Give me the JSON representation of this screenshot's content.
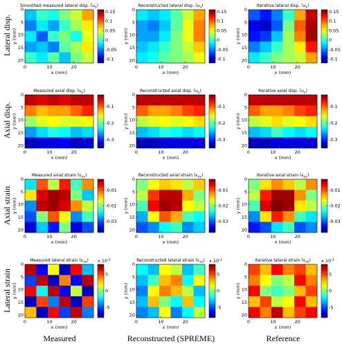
{
  "row_labels": [
    "Lateral disp.",
    "Axial disp.",
    "Axial strain",
    "Lateral strain"
  ],
  "column_labels": [
    "Measured",
    "Reconstructed (SPREME)",
    "Reference"
  ],
  "chart_data": [
    {
      "type": "heatmap",
      "title": "Smoothed measured lateral disp.",
      "symbol": "u",
      "subscript": "x",
      "xlabel": "x (mm)",
      "ylabel": "y (mm)",
      "xlim": [
        0,
        28
      ],
      "xticks": [
        0,
        10,
        20
      ],
      "ylim": [
        0,
        21
      ],
      "yticks": [
        0,
        5,
        10,
        15,
        20
      ],
      "clim": [
        -0.12,
        0.16
      ],
      "cticks": [
        0.15,
        0.1,
        0.05,
        0,
        -0.05,
        -0.1
      ],
      "z": [
        [
          -0.03,
          0.0,
          -0.01,
          0.02,
          0.04,
          0.08
        ],
        [
          -0.05,
          -0.02,
          -0.04,
          0.0,
          0.03,
          0.06
        ],
        [
          -0.02,
          -0.06,
          0.0,
          0.02,
          -0.01,
          0.05
        ],
        [
          -0.04,
          -0.03,
          -0.05,
          0.01,
          0.03,
          0.06
        ],
        [
          0.0,
          -0.02,
          0.01,
          -0.03,
          0.02,
          0.04
        ]
      ]
    },
    {
      "type": "heatmap",
      "title": "Reconstructed lateral disp.",
      "symbol": "u",
      "subscript": "x",
      "xlabel": "x (mm)",
      "ylabel": "y (mm)",
      "xlim": [
        0,
        28
      ],
      "xticks": [
        0,
        10,
        20
      ],
      "ylim": [
        0,
        21
      ],
      "yticks": [
        0,
        5,
        10,
        15,
        20
      ],
      "clim": [
        -0.12,
        0.16
      ],
      "cticks": [
        0.15,
        0.1,
        0.05,
        0,
        -0.05,
        -0.1
      ],
      "z": [
        [
          -0.02,
          -0.03,
          -0.02,
          0.01,
          0.04,
          0.08
        ],
        [
          -0.04,
          -0.05,
          -0.03,
          0.01,
          0.05,
          0.09
        ],
        [
          -0.04,
          -0.04,
          -0.02,
          0.02,
          0.05,
          0.09
        ],
        [
          -0.03,
          -0.02,
          0.0,
          0.02,
          0.04,
          0.07
        ],
        [
          -0.02,
          -0.01,
          0.01,
          0.02,
          0.03,
          0.05
        ]
      ]
    },
    {
      "type": "heatmap",
      "title": "Iterative lateral disp.",
      "symbol": "u",
      "subscript": "x",
      "xlabel": "x (mm)",
      "ylabel": "y (mm)",
      "xlim": [
        0,
        28
      ],
      "xticks": [
        0,
        10,
        20
      ],
      "ylim": [
        0,
        21
      ],
      "yticks": [
        0,
        5,
        10,
        15,
        20
      ],
      "clim": [
        -0.12,
        0.16
      ],
      "cticks": [
        0.15,
        0.1,
        0.05,
        0,
        -0.05,
        -0.1
      ],
      "z": [
        [
          -0.06,
          -0.08,
          -0.05,
          0.0,
          0.08,
          0.14
        ],
        [
          -0.09,
          -0.1,
          -0.06,
          0.02,
          0.1,
          0.15
        ],
        [
          -0.08,
          -0.07,
          -0.03,
          0.03,
          0.09,
          0.15
        ],
        [
          -0.05,
          -0.03,
          0.0,
          0.03,
          0.06,
          0.12
        ],
        [
          -0.02,
          0.0,
          0.02,
          0.03,
          0.04,
          0.08
        ]
      ]
    },
    {
      "type": "heatmap",
      "title": "Measured axial disp.",
      "symbol": "u",
      "subscript": "y",
      "xlabel": "x (mm)",
      "ylabel": "y (mm)",
      "xlim": [
        0,
        28
      ],
      "xticks": [
        0,
        10,
        20
      ],
      "ylim": [
        0,
        21
      ],
      "yticks": [
        0,
        5,
        10,
        15,
        20
      ],
      "clim": [
        -0.35,
        -0.03
      ],
      "cticks": [
        -0.1,
        -0.2,
        -0.3
      ],
      "z": [
        [
          -0.05,
          -0.06,
          -0.05,
          -0.06,
          -0.05,
          -0.05
        ],
        [
          -0.11,
          -0.13,
          -0.12,
          -0.12,
          -0.1,
          -0.08
        ],
        [
          -0.18,
          -0.16,
          -0.15,
          -0.16,
          -0.16,
          -0.15
        ],
        [
          -0.26,
          -0.24,
          -0.22,
          -0.23,
          -0.25,
          -0.24
        ],
        [
          -0.33,
          -0.32,
          -0.32,
          -0.31,
          -0.33,
          -0.32
        ]
      ]
    },
    {
      "type": "heatmap",
      "title": "Reconstructed axial disp.",
      "symbol": "u",
      "subscript": "y",
      "xlabel": "x (mm)",
      "ylabel": "y (mm)",
      "xlim": [
        0,
        28
      ],
      "xticks": [
        0,
        10,
        20
      ],
      "ylim": [
        0,
        21
      ],
      "yticks": [
        0,
        5,
        10,
        15,
        20
      ],
      "clim": [
        -0.35,
        -0.03
      ],
      "cticks": [
        -0.1,
        -0.2,
        -0.3
      ],
      "z": [
        [
          -0.05,
          -0.05,
          -0.05,
          -0.05,
          -0.05,
          -0.05
        ],
        [
          -0.1,
          -0.12,
          -0.12,
          -0.11,
          -0.09,
          -0.08
        ],
        [
          -0.17,
          -0.16,
          -0.15,
          -0.16,
          -0.15,
          -0.14
        ],
        [
          -0.25,
          -0.24,
          -0.22,
          -0.23,
          -0.24,
          -0.23
        ],
        [
          -0.33,
          -0.33,
          -0.32,
          -0.32,
          -0.32,
          -0.32
        ]
      ]
    },
    {
      "type": "heatmap",
      "title": "Iterative axial disp.",
      "symbol": "u",
      "subscript": "y",
      "xlabel": "x (mm)",
      "ylabel": "y (mm)",
      "xlim": [
        0,
        28
      ],
      "xticks": [
        0,
        10,
        20
      ],
      "ylim": [
        0,
        21
      ],
      "yticks": [
        0,
        5,
        10,
        15,
        20
      ],
      "clim": [
        -0.35,
        -0.03
      ],
      "cticks": [
        -0.1,
        -0.2,
        -0.3
      ],
      "z": [
        [
          -0.05,
          -0.05,
          -0.05,
          -0.05,
          -0.05,
          -0.05
        ],
        [
          -0.1,
          -0.12,
          -0.12,
          -0.11,
          -0.09,
          -0.08
        ],
        [
          -0.17,
          -0.16,
          -0.14,
          -0.16,
          -0.15,
          -0.14
        ],
        [
          -0.25,
          -0.24,
          -0.21,
          -0.23,
          -0.24,
          -0.23
        ],
        [
          -0.33,
          -0.33,
          -0.32,
          -0.32,
          -0.32,
          -0.32
        ]
      ]
    },
    {
      "type": "heatmap",
      "title": "Measured axial strain",
      "symbol": "ε",
      "subscript": "yy",
      "xlabel": "x (mm)",
      "ylabel": "y (mm)",
      "xlim": [
        0,
        28
      ],
      "xticks": [
        0,
        10,
        20
      ],
      "ylim": [
        0,
        21
      ],
      "yticks": [
        0,
        5,
        10,
        15,
        20
      ],
      "clim": [
        -0.037,
        -0.003
      ],
      "cticks": [
        -0.01,
        -0.02,
        -0.03
      ],
      "z": [
        [
          -0.025,
          -0.01,
          -0.018,
          -0.008,
          -0.022,
          -0.012
        ],
        [
          -0.015,
          -0.006,
          -0.004,
          -0.005,
          -0.02,
          -0.026
        ],
        [
          -0.028,
          -0.005,
          -0.004,
          -0.006,
          -0.012,
          -0.018
        ],
        [
          -0.03,
          -0.02,
          -0.01,
          -0.016,
          -0.028,
          -0.022
        ],
        [
          -0.034,
          -0.026,
          -0.032,
          -0.02,
          -0.034,
          -0.03
        ]
      ]
    },
    {
      "type": "heatmap",
      "title": "Reconstructed axial strain",
      "symbol": "ε",
      "subscript": "yy",
      "xlabel": "x (mm)",
      "ylabel": "y (mm)",
      "xlim": [
        0,
        28
      ],
      "xticks": [
        0,
        10,
        20
      ],
      "ylim": [
        0,
        21
      ],
      "yticks": [
        0,
        5,
        10,
        15,
        20
      ],
      "clim": [
        -0.037,
        -0.003
      ],
      "cticks": [
        -0.01,
        -0.02,
        -0.03
      ],
      "z": [
        [
          -0.02,
          -0.016,
          -0.014,
          -0.015,
          -0.018,
          -0.014
        ],
        [
          -0.018,
          -0.009,
          -0.005,
          -0.005,
          -0.013,
          -0.02
        ],
        [
          -0.022,
          -0.007,
          -0.004,
          -0.005,
          -0.016,
          -0.018
        ],
        [
          -0.027,
          -0.016,
          -0.01,
          -0.013,
          -0.022,
          -0.024
        ],
        [
          -0.03,
          -0.028,
          -0.024,
          -0.022,
          -0.028,
          -0.026
        ]
      ]
    },
    {
      "type": "heatmap",
      "title": "Iterative axial strain",
      "symbol": "ε",
      "subscript": "yy",
      "xlabel": "x (mm)",
      "ylabel": "y (mm)",
      "xlim": [
        0,
        28
      ],
      "xticks": [
        0,
        10,
        20
      ],
      "ylim": [
        0,
        21
      ],
      "yticks": [
        0,
        5,
        10,
        15,
        20
      ],
      "clim": [
        -0.037,
        -0.003
      ],
      "cticks": [
        -0.01,
        -0.02,
        -0.03
      ],
      "z": [
        [
          -0.02,
          -0.015,
          -0.012,
          -0.014,
          -0.018,
          -0.012
        ],
        [
          -0.018,
          -0.008,
          -0.004,
          -0.004,
          -0.012,
          -0.02
        ],
        [
          -0.022,
          -0.006,
          -0.003,
          -0.004,
          -0.015,
          -0.018
        ],
        [
          -0.028,
          -0.015,
          -0.008,
          -0.012,
          -0.022,
          -0.025
        ],
        [
          -0.032,
          -0.03,
          -0.025,
          -0.022,
          -0.03,
          -0.028
        ]
      ]
    },
    {
      "type": "heatmap",
      "title": "Measured lateral strain",
      "symbol": "ε",
      "subscript": "xx",
      "xlabel": "x (mm)",
      "ylabel": "y (mm)",
      "xlim": [
        0,
        28
      ],
      "xticks": [
        0,
        10,
        20
      ],
      "ylim": [
        0,
        21
      ],
      "yticks": [
        0,
        5,
        10,
        15,
        20
      ],
      "clim": [
        -8,
        8
      ],
      "cticks": [
        5,
        0,
        -5
      ],
      "cscale": "x 10",
      "cexponent": "-3",
      "z": [
        [
          7,
          -6,
          2,
          -7,
          6,
          -3
        ],
        [
          -5,
          7,
          -7,
          4,
          -6,
          7
        ],
        [
          6,
          -2,
          7,
          -6,
          1,
          -7
        ],
        [
          -7,
          5,
          -4,
          7,
          -7,
          5
        ],
        [
          3,
          -7,
          6,
          -5,
          7,
          -4
        ]
      ]
    },
    {
      "type": "heatmap",
      "title": "Reconstructed lateral strain",
      "symbol": "ε",
      "subscript": "xx",
      "xlabel": "x (mm)",
      "ylabel": "y (mm)",
      "xlim": [
        0,
        28
      ],
      "xticks": [
        0,
        10,
        20
      ],
      "ylim": [
        0,
        21
      ],
      "yticks": [
        0,
        5,
        10,
        15,
        20
      ],
      "clim": [
        -8,
        8
      ],
      "cticks": [
        5,
        0,
        -5
      ],
      "cscale": "x 10",
      "cexponent": "-3",
      "z": [
        [
          -2,
          -3,
          2,
          1,
          -3,
          -1
        ],
        [
          -3,
          -1,
          3,
          4,
          -2,
          2
        ],
        [
          -4,
          2,
          4,
          3,
          1,
          -3
        ],
        [
          -3,
          3,
          0,
          -2,
          3,
          -2
        ],
        [
          -4,
          -3,
          2,
          -4,
          -2,
          1
        ]
      ]
    },
    {
      "type": "heatmap",
      "title": "Iterative lateral strain",
      "symbol": "ε",
      "subscript": "xx",
      "xlabel": "x (mm)",
      "ylabel": "y (mm)",
      "xlim": [
        0,
        28
      ],
      "xticks": [
        0,
        10,
        20
      ],
      "ylim": [
        0,
        21
      ],
      "yticks": [
        0,
        5,
        10,
        15,
        20
      ],
      "clim": [
        -8,
        8
      ],
      "cticks": [
        5,
        0,
        -5
      ],
      "cscale": "x 10",
      "cexponent": "-3",
      "z": [
        [
          5,
          3,
          6,
          4,
          5,
          3
        ],
        [
          4,
          2,
          0,
          1,
          6,
          4
        ],
        [
          6,
          0,
          -1,
          0,
          3,
          5
        ],
        [
          3,
          5,
          1,
          2,
          6,
          3
        ],
        [
          6,
          4,
          7,
          3,
          5,
          6
        ]
      ]
    }
  ]
}
